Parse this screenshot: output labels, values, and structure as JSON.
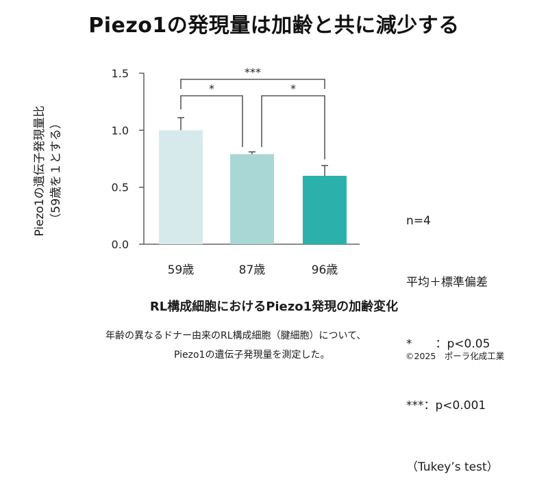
{
  "title": "Piezo1の発現量は加齢と共に減少する",
  "ylabel_line1": "Piezo1の遺伝子発現量比",
  "ylabel_line2": "（59歳を１とする）",
  "legend": {
    "n": "n=4",
    "stat": "平均＋標準偏差",
    "p1": "*　　：p<0.05",
    "p2": "***：p<0.001",
    "test": "（Tukey’s test）"
  },
  "caption": "RL構成細胞におけるPiezo1発現の加齢変化",
  "desc_line1": "年齢の異なるドナー由来のRL構成細胞（腱細胞）について、",
  "desc_line2": "Piezo1の遺伝子発現量を測定した。",
  "credit": "©2025　ポーラ化成工業",
  "chart_data": {
    "type": "bar",
    "categories": [
      "59歳",
      "87歳",
      "96歳"
    ],
    "values": [
      1.0,
      0.79,
      0.6
    ],
    "error": [
      0.11,
      0.02,
      0.09
    ],
    "colors": [
      "#d6eaec",
      "#a8d7d6",
      "#2bb0ab"
    ],
    "ylim": [
      0,
      1.5
    ],
    "yticks": [
      "0.0",
      "0.5",
      "1.0",
      "1.5"
    ],
    "significance": [
      {
        "from": 0,
        "to": 1,
        "label": "*"
      },
      {
        "from": 1,
        "to": 2,
        "label": "*"
      },
      {
        "from": 0,
        "to": 2,
        "label": "***"
      }
    ]
  }
}
